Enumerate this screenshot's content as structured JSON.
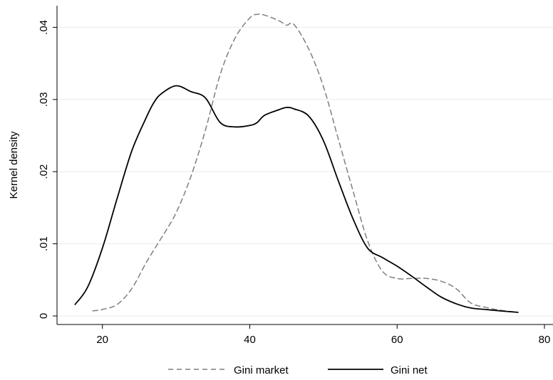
{
  "chart_data": {
    "type": "line",
    "xlabel": "",
    "ylabel": "Kernel density",
    "xlim": [
      15,
      80
    ],
    "ylim": [
      0,
      0.043
    ],
    "xticks": [
      20,
      40,
      60,
      80
    ],
    "xtick_labels": [
      "20",
      "40",
      "60",
      "80"
    ],
    "yticks": [
      0,
      0.01,
      0.02,
      0.03,
      0.04
    ],
    "ytick_labels": [
      "0",
      ".01",
      ".02",
      ".03",
      ".04"
    ],
    "grid": "horizontal",
    "legend_position": "bottom",
    "series": [
      {
        "name": "Gini market",
        "style": "dashed",
        "color": "#7f7f7f",
        "x": [
          18.7,
          20,
          22,
          24,
          26,
          28,
          30,
          32,
          34,
          36,
          38,
          40,
          41,
          42,
          44,
          45,
          46,
          48,
          50,
          52,
          54,
          56,
          58,
          60,
          62,
          64,
          66,
          68,
          70,
          72,
          74,
          76.4
        ],
        "y": [
          0.0007,
          0.0009,
          0.0016,
          0.0038,
          0.0075,
          0.0108,
          0.0143,
          0.0193,
          0.0258,
          0.0335,
          0.0385,
          0.0413,
          0.0418,
          0.0417,
          0.0409,
          0.0403,
          0.0404,
          0.037,
          0.0318,
          0.0246,
          0.0174,
          0.0104,
          0.0062,
          0.0052,
          0.0052,
          0.0052,
          0.0048,
          0.0038,
          0.0018,
          0.0012,
          0.0008,
          0.0005
        ]
      },
      {
        "name": "Gini net",
        "style": "solid",
        "color": "#000000",
        "x": [
          16.3,
          18,
          20,
          22,
          24,
          26,
          27,
          28,
          30,
          32,
          34,
          36,
          38,
          40,
          41,
          42,
          44,
          45,
          46,
          48,
          50,
          52,
          54,
          56,
          58,
          60,
          62,
          64,
          66,
          68,
          70,
          72,
          74,
          76.4
        ],
        "y": [
          0.0016,
          0.004,
          0.0094,
          0.0163,
          0.0229,
          0.0276,
          0.0296,
          0.0308,
          0.0319,
          0.0311,
          0.0302,
          0.0268,
          0.0262,
          0.0264,
          0.0268,
          0.0278,
          0.0286,
          0.0289,
          0.0287,
          0.0277,
          0.0243,
          0.0188,
          0.0135,
          0.0094,
          0.0081,
          0.0069,
          0.0055,
          0.004,
          0.0026,
          0.0017,
          0.0011,
          0.0009,
          0.0007,
          0.0005
        ]
      }
    ]
  }
}
